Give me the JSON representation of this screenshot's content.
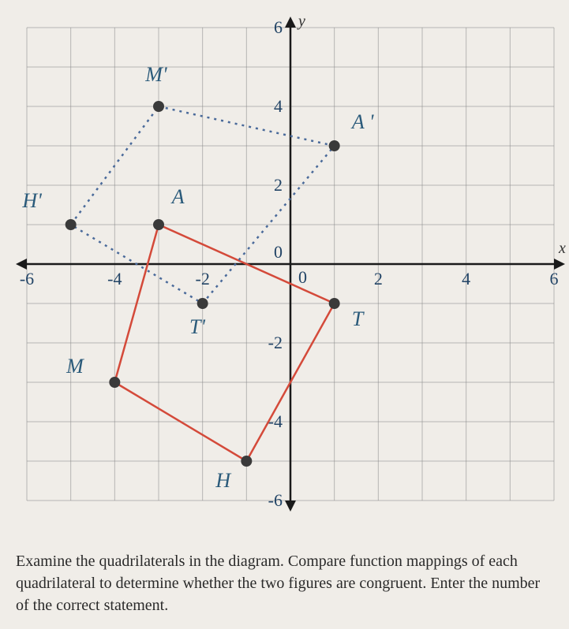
{
  "chart": {
    "type": "coordinate-grid",
    "xlim": [
      -6,
      6
    ],
    "ylim": [
      -6,
      6
    ],
    "x_ticks": [
      -6,
      -4,
      -2,
      0,
      2,
      4,
      6
    ],
    "y_ticks": [
      -6,
      -4,
      -2,
      0,
      2,
      4,
      6
    ],
    "tick_fontsize": 22,
    "label_fontsize": 26,
    "x_axis_label": "x",
    "y_axis_label": "y",
    "grid_color": "#888888",
    "grid_width": 1,
    "axis_color": "#1a1a1a",
    "axis_width": 2.5,
    "background_color": "#f0ede8",
    "tick_color": "#224466",
    "quad1": {
      "name": "MATH",
      "line_color": "#d44a3a",
      "line_width": 2.5,
      "line_style": "solid",
      "fill": "none",
      "point_color": "#3a3a3a",
      "point_radius": 7,
      "label_color": "#2a5a7a",
      "points": {
        "M": {
          "x": -4,
          "y": -3,
          "label": "M",
          "lx": -5.1,
          "ly": -2.6
        },
        "A": {
          "x": -3,
          "y": 1,
          "label": "A",
          "lx": -2.7,
          "ly": 1.7
        },
        "T": {
          "x": 1,
          "y": -1,
          "label": "T",
          "lx": 1.4,
          "ly": -1.4
        },
        "H": {
          "x": -1,
          "y": -5,
          "label": "H",
          "lx": -1.7,
          "ly": -5.5
        }
      }
    },
    "quad2": {
      "name": "M'A'T'H'",
      "line_color": "#4a6a9a",
      "line_width": 2.5,
      "line_style": "dotted",
      "fill": "none",
      "point_color": "#3a3a3a",
      "point_radius": 7,
      "label_color": "#2a5a7a",
      "points": {
        "M'": {
          "x": -3,
          "y": 4,
          "label": "M'",
          "lx": -3.3,
          "ly": 4.8
        },
        "A'": {
          "x": 1,
          "y": 3,
          "label": "A '",
          "lx": 1.4,
          "ly": 3.6
        },
        "T'": {
          "x": -2,
          "y": -1,
          "label": "T'",
          "lx": -2.3,
          "ly": -1.6
        },
        "H'": {
          "x": -5,
          "y": 1,
          "label": "H'",
          "lx": -6.1,
          "ly": 1.6
        }
      }
    }
  },
  "instruction_text": "Examine the quadrilaterals in the diagram. Compare function mappings of each quadrilateral to determine whether the two figures are congruent. Enter the number of the correct statement."
}
